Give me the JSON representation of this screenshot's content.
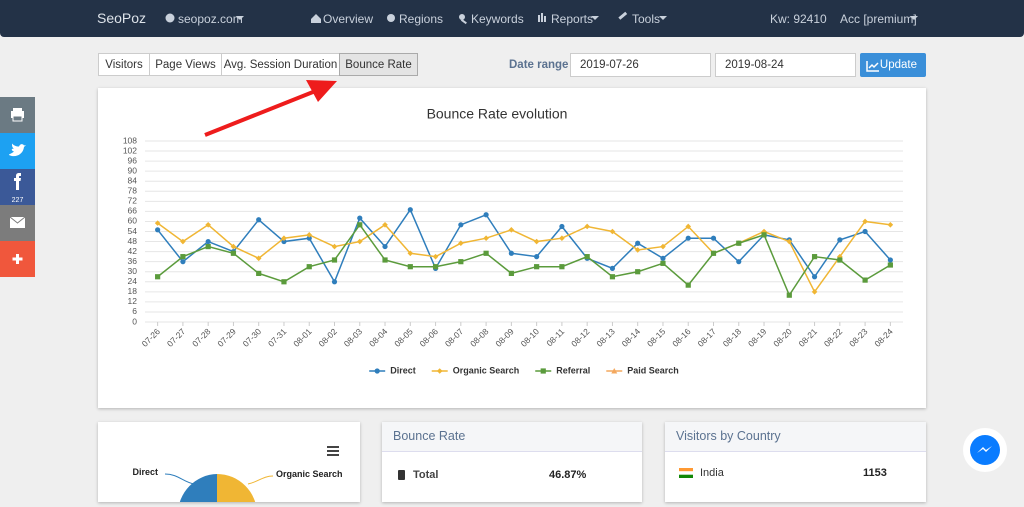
{
  "navbar": {
    "brand": "SeoPoz",
    "site": "seopoz.com",
    "links": [
      "Overview",
      "Regions",
      "Keywords",
      "Reports",
      "Tools"
    ],
    "kw": "Kw: 92410",
    "account": "Acc [premium]"
  },
  "tabs": [
    "Visitors",
    "Page Views",
    "Avg. Session Duration",
    "Bounce Rate"
  ],
  "date_range": {
    "label": "Date range",
    "start": "2019-07-26",
    "end": "2019-08-24",
    "button": "Update"
  },
  "share": {
    "facebook_count": 227
  },
  "chart_data": {
    "type": "line",
    "title": "Bounce Rate evolution",
    "categories": [
      "07-26",
      "07-27",
      "07-28",
      "07-29",
      "07-30",
      "07-31",
      "08-01",
      "08-02",
      "08-03",
      "08-04",
      "08-05",
      "08-06",
      "08-07",
      "08-08",
      "08-09",
      "08-10",
      "08-11",
      "08-12",
      "08-13",
      "08-14",
      "08-15",
      "08-16",
      "08-17",
      "08-18",
      "08-19",
      "08-20",
      "08-21",
      "08-22",
      "08-23",
      "08-24"
    ],
    "series": [
      {
        "name": "Direct",
        "color": "#2f7ebc",
        "marker": "circle",
        "values": [
          55,
          36,
          48,
          42,
          61,
          48,
          50,
          24,
          62,
          45,
          67,
          32,
          58,
          64,
          41,
          39,
          57,
          38,
          32,
          47,
          38,
          50,
          50,
          36,
          52,
          49,
          27,
          49,
          54,
          37
        ]
      },
      {
        "name": "Organic Search",
        "color": "#f0b634",
        "marker": "diamond",
        "values": [
          59,
          48,
          58,
          45,
          38,
          50,
          52,
          45,
          48,
          58,
          41,
          39,
          47,
          50,
          55,
          48,
          50,
          57,
          54,
          43,
          45,
          57,
          41,
          47,
          54,
          48,
          18,
          39,
          60,
          58
        ]
      },
      {
        "name": "Referral",
        "color": "#5b9b3c",
        "marker": "square",
        "values": [
          27,
          39,
          45,
          41,
          29,
          24,
          33,
          37,
          58,
          37,
          33,
          33,
          36,
          41,
          29,
          33,
          33,
          39,
          27,
          30,
          35,
          22,
          41,
          47,
          52,
          16,
          39,
          37,
          25,
          34
        ]
      },
      {
        "name": "Paid Search",
        "color": "#f4a85e",
        "marker": "triangle",
        "values": [
          null,
          null,
          null,
          null,
          null,
          null,
          null,
          null,
          null,
          null,
          null,
          null,
          null,
          null,
          null,
          null,
          null,
          null,
          null,
          null,
          null,
          null,
          null,
          null,
          null,
          null,
          null,
          null,
          null,
          null
        ]
      }
    ],
    "ylim": [
      0,
      108
    ],
    "yticks": [
      0,
      6,
      12,
      18,
      24,
      30,
      36,
      42,
      48,
      54,
      60,
      66,
      72,
      78,
      84,
      90,
      96,
      102,
      108
    ],
    "grid": true,
    "legend": "bottom"
  },
  "pie_card": {
    "labels": [
      "Direct",
      "Organic Search"
    ]
  },
  "bounce_card": {
    "title": "Bounce Rate",
    "rows": [
      [
        "Total",
        "46.87%"
      ]
    ]
  },
  "country_card": {
    "title": "Visitors by Country",
    "rows": [
      [
        "India",
        1153
      ]
    ]
  }
}
